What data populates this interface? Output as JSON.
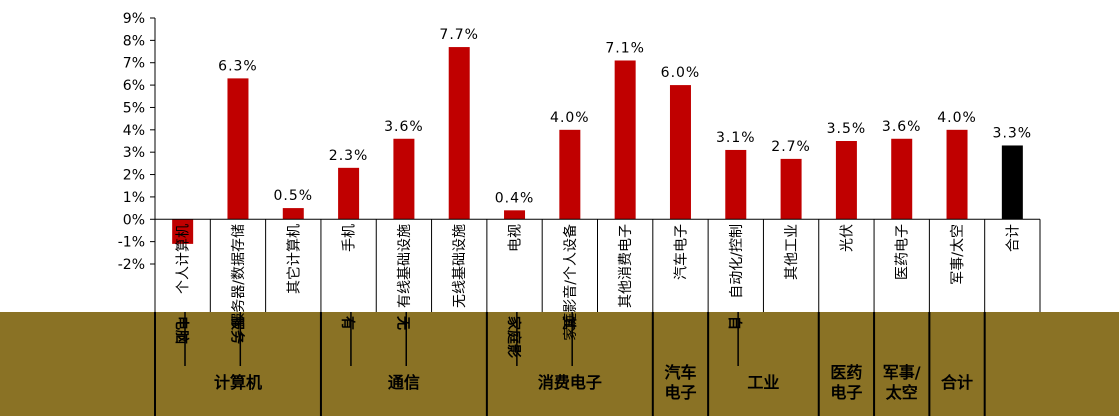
{
  "chart_data": {
    "type": "bar",
    "title": "",
    "xlabel": "",
    "ylabel": "",
    "ylim": [
      -2,
      9
    ],
    "yticks": [
      "9%",
      "8%",
      "7%",
      "6%",
      "5%",
      "4%",
      "3%",
      "2%",
      "1%",
      "0%",
      "-1%",
      "-2%"
    ],
    "grid": false,
    "categories": [
      "个人计算机",
      "服务器/数据存储",
      "其它计算机",
      "手机",
      "有线基础设施",
      "无线基础设施",
      "电视",
      "家庭影音/个人设备",
      "其他消费电子",
      "汽车电子",
      "自动化/控制",
      "其他工业",
      "光伏",
      "医药电子",
      "军事/太空",
      "合计"
    ],
    "values": [
      -1.1,
      6.3,
      0.5,
      2.3,
      3.6,
      7.7,
      0.4,
      4.0,
      7.1,
      6.0,
      3.1,
      2.7,
      3.5,
      3.6,
      4.0,
      3.3
    ],
    "data_labels": [
      "",
      "6.3%",
      "0.5%",
      "2.3%",
      "3.6%",
      "7.7%",
      "0.4%",
      "4.0%",
      "7.1%",
      "6.0%",
      "3.1%",
      "2.7%",
      "3.5%",
      "3.6%",
      "4.0%",
      "3.3%"
    ],
    "colors": [
      "#c00000",
      "#c00000",
      "#c00000",
      "#c00000",
      "#c00000",
      "#c00000",
      "#c00000",
      "#c00000",
      "#c00000",
      "#c00000",
      "#c00000",
      "#c00000",
      "#c00000",
      "#c00000",
      "#c00000",
      "#000000"
    ],
    "groups": [
      {
        "label": "计算机",
        "sub": [
          "电脑",
          "服务"
        ]
      },
      {
        "label": "通信",
        "sub": [
          "有",
          "无"
        ]
      },
      {
        "label": "消费电子",
        "sub": [
          "家庭影",
          "其"
        ]
      },
      {
        "label": "汽车\n电子",
        "sub": []
      },
      {
        "label": "工业",
        "sub": [
          "自"
        ]
      },
      {
        "label": "医药\n电子",
        "sub": []
      },
      {
        "label": "军事/\n太空",
        "sub": []
      },
      {
        "label": "合计",
        "sub": []
      }
    ]
  }
}
